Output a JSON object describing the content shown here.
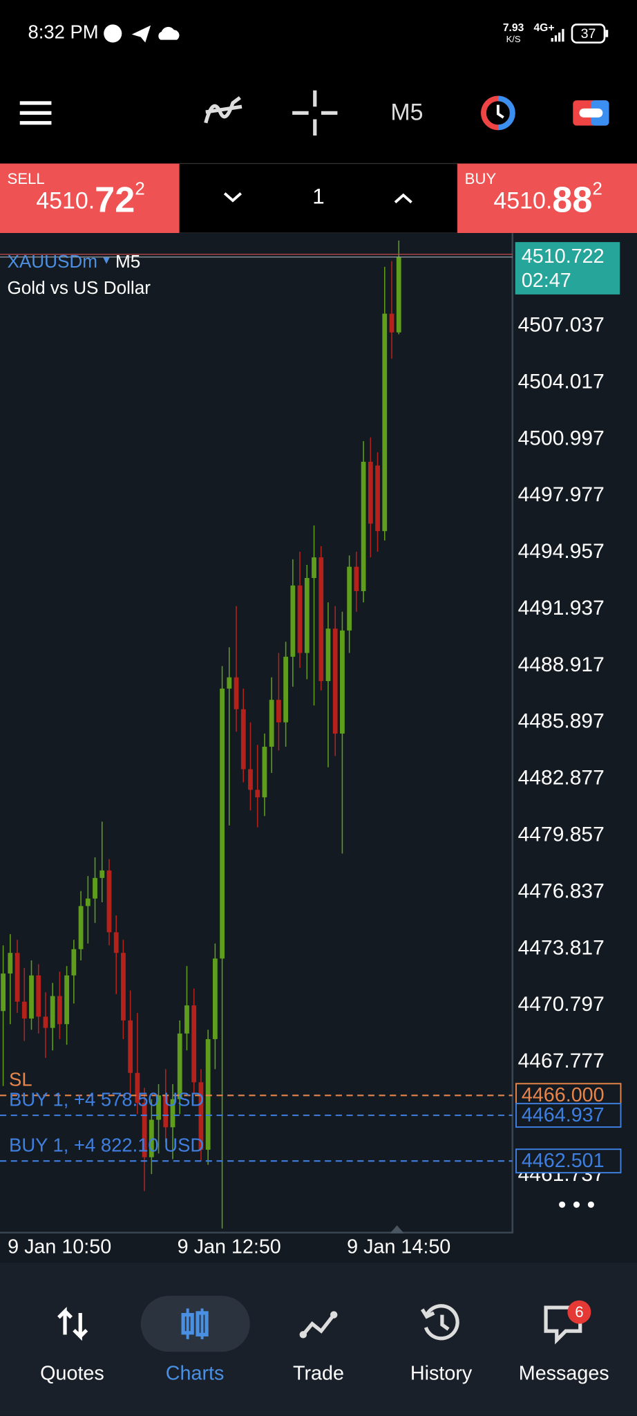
{
  "status_bar": {
    "time": "8:32 PM",
    "net_speed": "7.93",
    "net_unit": "K/S",
    "network": "4G+",
    "battery": "37"
  },
  "toolbar": {
    "timeframe": "M5"
  },
  "trade_bar": {
    "sell": {
      "label": "SELL",
      "price_small": "4510.",
      "price_big": "72",
      "price_sup": "2"
    },
    "volume": "1",
    "buy": {
      "label": "BUY",
      "price_small": "4510.",
      "price_big": "88",
      "price_sup": "2"
    }
  },
  "chart": {
    "type": "candlestick",
    "symbol": "XAUUSDm",
    "timeframe": "M5",
    "description": "Gold vs US Dollar",
    "ylim": [
      4458.68,
      4512.0
    ],
    "yticks": [
      4507.037,
      4504.017,
      4500.997,
      4497.977,
      4494.957,
      4491.937,
      4488.917,
      4485.897,
      4482.877,
      4479.857,
      4476.837,
      4473.817,
      4470.797,
      4467.777,
      4461.737
    ],
    "x_labels": [
      "9 Jan 10:50",
      "9 Jan 12:50",
      "9 Jan 14:50"
    ],
    "up_color": "#5f9e1c",
    "down_color": "#b5221c",
    "current_price": 4510.722,
    "current_timer": "02:47",
    "lines": [
      {
        "tag": "SL",
        "price": {
          "value": 4466,
          "label": "4466.000"
        },
        "color": "#e8854a"
      },
      {
        "tag": "BUY 1,  +4 578.50 USD",
        "price": 4464.937,
        "color": "#3f7fe0"
      },
      {
        "tag": "BUY 1,  +4 822.10 USD",
        "price": 4462.501,
        "color": "#3f7fe0"
      }
    ],
    "open": [
      4470.5,
      4472.5,
      4473.6,
      4471.0,
      4470.1,
      4472.4,
      4470.2,
      4469.6,
      4471.3,
      4469.8,
      4472.4,
      4473.8,
      4476.1,
      4476.5,
      4477.6,
      4478.0,
      4474.7,
      4473.6,
      4470.0,
      4467.2,
      4465.6,
      4462.7,
      4464.7,
      4466.0,
      4464.3,
      4465.8,
      4469.3,
      4470.8,
      4466.7,
      4463.1,
      4469.0,
      4473.3,
      4487.7,
      4488.3,
      4486.6,
      4483.4,
      4482.3,
      4481.9,
      4484.6,
      4487.1,
      4485.9,
      4489.4,
      4493.2,
      4489.6,
      4493.6,
      4494.7,
      4488.1,
      4490.9,
      4485.3,
      4490.8,
      4494.2,
      4492.9,
      4499.8,
      4499.6,
      4496.1,
      4507.7,
      4506.7
    ],
    "high": [
      4474.0,
      4474.6,
      4474.3,
      4472.8,
      4473.2,
      4473.0,
      4471.5,
      4472.0,
      4472.6,
      4472.9,
      4474.3,
      4476.9,
      4477.7,
      4478.7,
      4480.6,
      4478.6,
      4475.6,
      4474.3,
      4471.6,
      4470.4,
      4466.4,
      4465.8,
      4466.6,
      4467.4,
      4466.6,
      4470.0,
      4472.9,
      4471.7,
      4467.4,
      4469.5,
      4474.1,
      4488.9,
      4489.9,
      4492.1,
      4487.7,
      4485.9,
      4484.7,
      4485.3,
      4488.3,
      4489.6,
      4490.2,
      4494.6,
      4495.0,
      4494.3,
      4496.4,
      4495.3,
      4492.3,
      4492.1,
      4491.8,
      4494.8,
      4495.0,
      4500.9,
      4501.1,
      4500.3,
      4510.2,
      4510.5,
      4511.6
    ],
    "low": [
      4466.5,
      4469.8,
      4470.4,
      4468.9,
      4469.5,
      4469.3,
      4468.0,
      4468.4,
      4469.0,
      4468.7,
      4470.9,
      4473.2,
      4474.1,
      4475.2,
      4476.3,
      4474.0,
      4471.4,
      4469.0,
      4466.0,
      4465.0,
      4460.9,
      4461.8,
      4462.9,
      4463.5,
      4462.6,
      4465.0,
      4468.4,
      4466.1,
      4462.5,
      4462.3,
      4467.4,
      4458.9,
      4480.4,
      4485.4,
      4482.7,
      4481.2,
      4480.3,
      4480.9,
      4483.2,
      4484.4,
      4484.6,
      4487.8,
      4488.8,
      4488.2,
      4486.8,
      4487.6,
      4483.5,
      4484.1,
      4478.9,
      4489.6,
      4491.8,
      4492.3,
      4494.7,
      4495.0,
      4495.6,
      4505.3,
      4506.6
    ],
    "close": [
      4472.5,
      4473.6,
      4471.0,
      4470.1,
      4472.4,
      4470.2,
      4469.6,
      4471.3,
      4469.8,
      4472.4,
      4473.8,
      4476.1,
      4476.5,
      4477.6,
      4478.0,
      4474.7,
      4473.6,
      4470.0,
      4467.2,
      4465.6,
      4462.7,
      4464.7,
      4466.0,
      4464.3,
      4465.8,
      4469.3,
      4470.8,
      4466.7,
      4463.1,
      4469.0,
      4473.3,
      4487.7,
      4488.3,
      4486.6,
      4483.4,
      4482.3,
      4481.9,
      4484.6,
      4487.1,
      4485.9,
      4489.4,
      4493.2,
      4489.6,
      4493.6,
      4494.7,
      4488.1,
      4490.9,
      4485.3,
      4490.8,
      4494.2,
      4492.9,
      4499.8,
      4496.5,
      4496.1,
      4507.7,
      4506.7,
      4510.722
    ]
  },
  "nav": {
    "items": [
      "Quotes",
      "Charts",
      "Trade",
      "History",
      "Messages"
    ],
    "active": 1,
    "badge": "6"
  }
}
